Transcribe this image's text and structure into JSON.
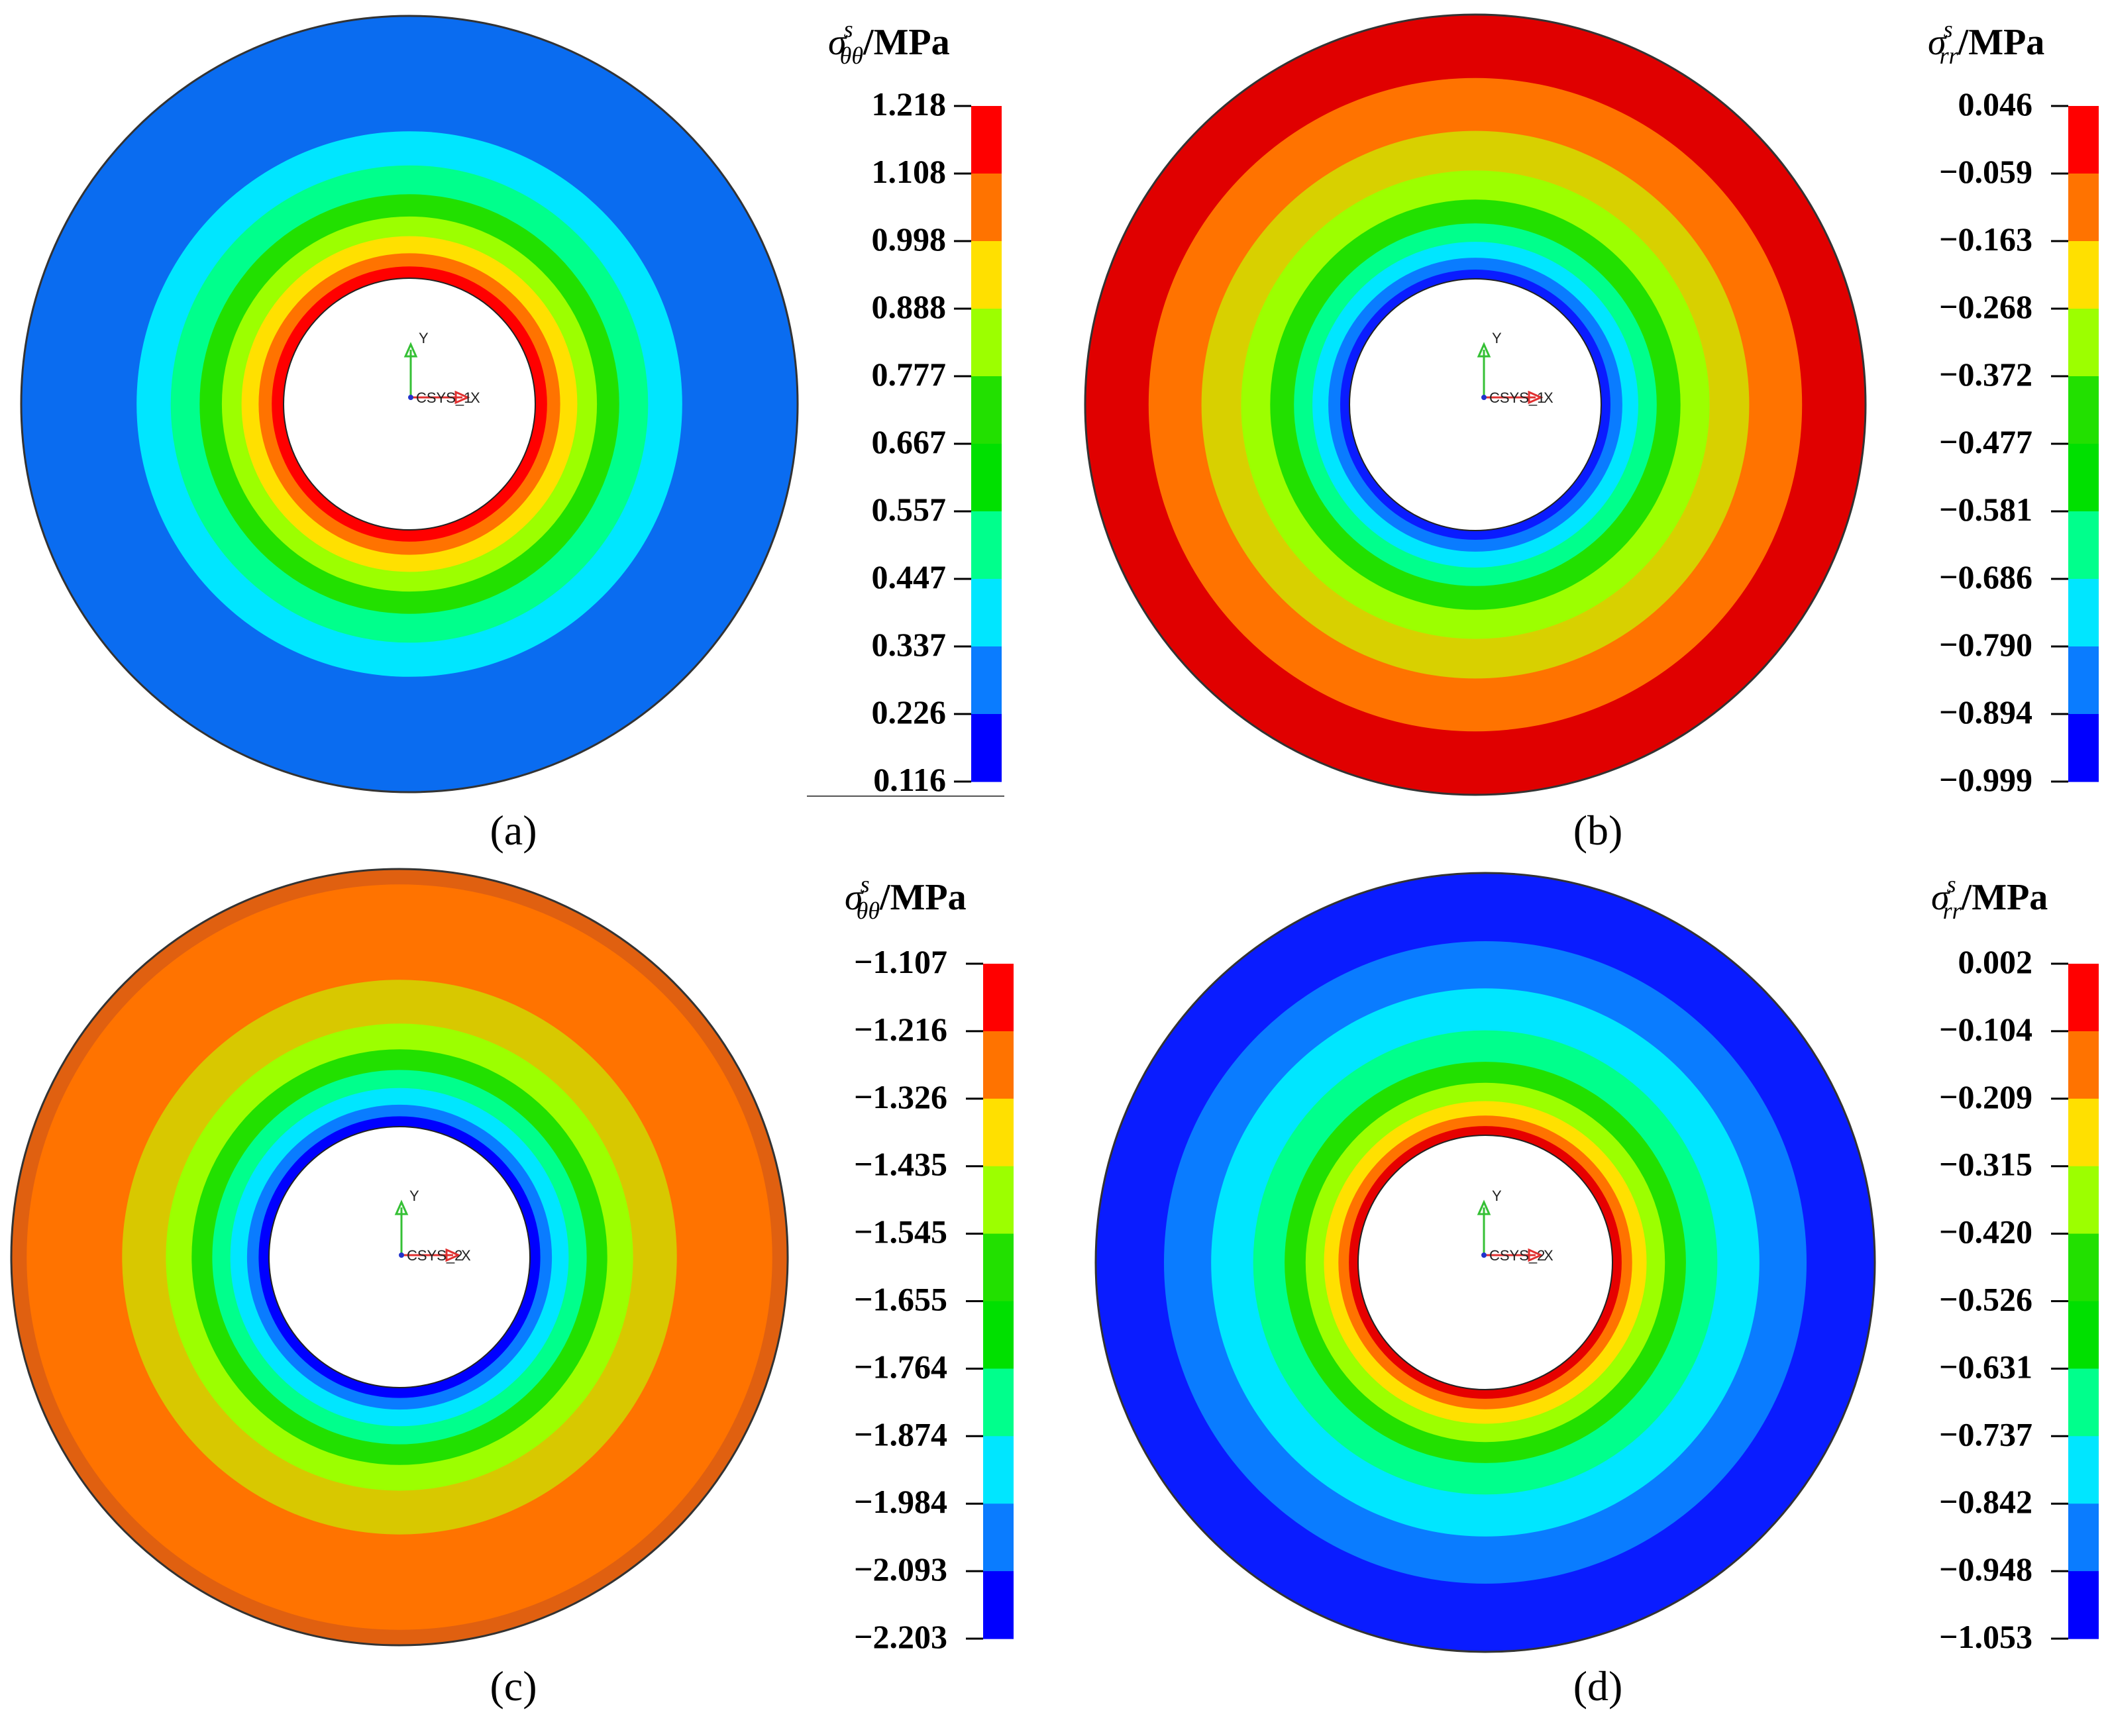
{
  "figure": {
    "panels": [
      {
        "id": "a",
        "label": "(a)",
        "quantity": {
          "symbol": "σ",
          "superscript": "s",
          "subscript": "θθ",
          "unit": "/MPa"
        },
        "colorbar_values": [
          "1.218",
          "1.108",
          "0.998",
          "0.888",
          "0.777",
          "0.667",
          "0.557",
          "0.447",
          "0.337",
          "0.226",
          "0.116"
        ],
        "inner_high": true,
        "csys": {
          "y": "Y",
          "x": "X",
          "name": "CSYS_1"
        }
      },
      {
        "id": "b",
        "label": "(b)",
        "quantity": {
          "symbol": "σ",
          "superscript": "s",
          "subscript": "rr",
          "unit": "/MPa"
        },
        "colorbar_values": [
          "0.046",
          "−0.059",
          "−0.163",
          "−0.268",
          "−0.372",
          "−0.477",
          "−0.581",
          "−0.686",
          "−0.790",
          "−0.894",
          "−0.999"
        ],
        "inner_high": false,
        "csys": {
          "y": "Y",
          "x": "X",
          "name": "CSYS_1"
        }
      },
      {
        "id": "c",
        "label": "(c)",
        "quantity": {
          "symbol": "σ",
          "superscript": "s",
          "subscript": "θθ",
          "unit": "/MPa"
        },
        "colorbar_values": [
          "−1.107",
          "−1.216",
          "−1.326",
          "−1.435",
          "−1.545",
          "−1.655",
          "−1.764",
          "−1.874",
          "−1.984",
          "−2.093",
          "−2.203"
        ],
        "inner_high": false,
        "csys": {
          "y": "Y",
          "x": "X",
          "name": "CSYS_2"
        }
      },
      {
        "id": "d",
        "label": "(d)",
        "quantity": {
          "symbol": "σ",
          "superscript": "s",
          "subscript": "rr",
          "unit": "/MPa"
        },
        "colorbar_values": [
          "0.002",
          "−0.104",
          "−0.209",
          "−0.315",
          "−0.420",
          "−0.526",
          "−0.631",
          "−0.737",
          "−0.842",
          "−0.948",
          "−1.053"
        ],
        "inner_high": true,
        "csys": {
          "y": "Y",
          "x": "X",
          "name": "CSYS_2"
        }
      }
    ],
    "palette": [
      "#ff0000",
      "#ff7300",
      "#ffe000",
      "#9cff00",
      "#22e000",
      "#00ff8c",
      "#00e6ff",
      "#0a7cff",
      "#0000ff"
    ]
  }
}
